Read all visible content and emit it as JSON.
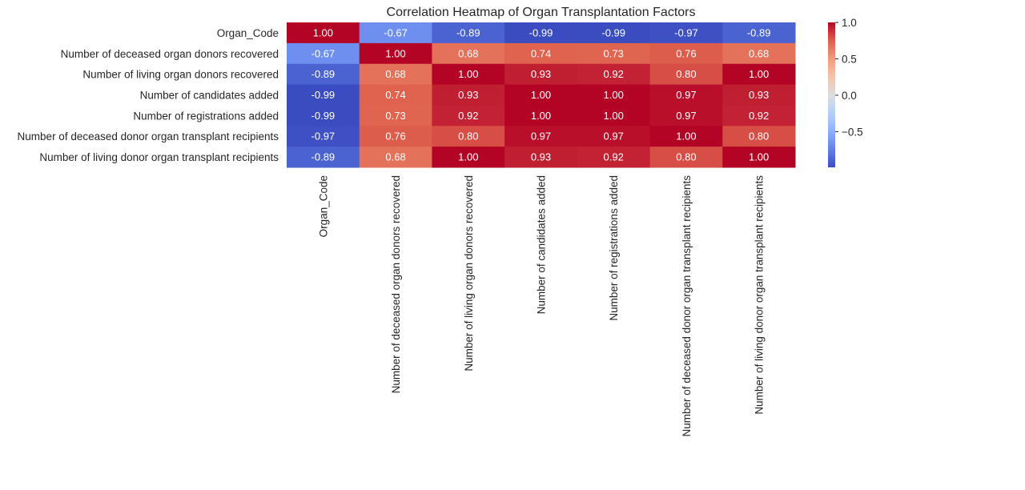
{
  "chart_data": {
    "type": "heatmap",
    "title": "Correlation Heatmap of Organ Transplantation Factors",
    "row_labels": [
      "Organ_Code",
      "Number of deceased organ donors recovered",
      "Number of living organ donors recovered",
      "Number of candidates added",
      "Number of registrations added",
      "Number of deceased donor organ transplant recipients",
      "Number of living donor organ transplant recipients"
    ],
    "col_labels": [
      "Organ_Code",
      "Number of deceased organ donors recovered",
      "Number of living organ donors recovered",
      "Number of candidates added",
      "Number of registrations added",
      "Number of deceased donor organ transplant recipients",
      "Number of living donor organ transplant recipients"
    ],
    "values": [
      [
        1.0,
        -0.67,
        -0.89,
        -0.99,
        -0.99,
        -0.97,
        -0.89
      ],
      [
        -0.67,
        1.0,
        0.68,
        0.74,
        0.73,
        0.76,
        0.68
      ],
      [
        -0.89,
        0.68,
        1.0,
        0.93,
        0.92,
        0.8,
        1.0
      ],
      [
        -0.99,
        0.74,
        0.93,
        1.0,
        1.0,
        0.97,
        0.93
      ],
      [
        -0.99,
        0.73,
        0.92,
        1.0,
        1.0,
        0.97,
        0.92
      ],
      [
        -0.97,
        0.76,
        0.8,
        0.97,
        0.97,
        1.0,
        0.8
      ],
      [
        -0.89,
        0.68,
        1.0,
        0.93,
        0.92,
        0.8,
        1.0
      ]
    ],
    "value_format_decimals": 2,
    "colormap": "coolwarm",
    "color_range": [
      -0.99,
      1.0
    ],
    "colorbar": {
      "ticks": [
        1.0,
        0.5,
        0.0,
        -0.5
      ],
      "tick_labels": [
        "1.0",
        "0.5",
        "0.0",
        "−0.5"
      ]
    },
    "grid": false,
    "legend": "colorbar-right"
  }
}
